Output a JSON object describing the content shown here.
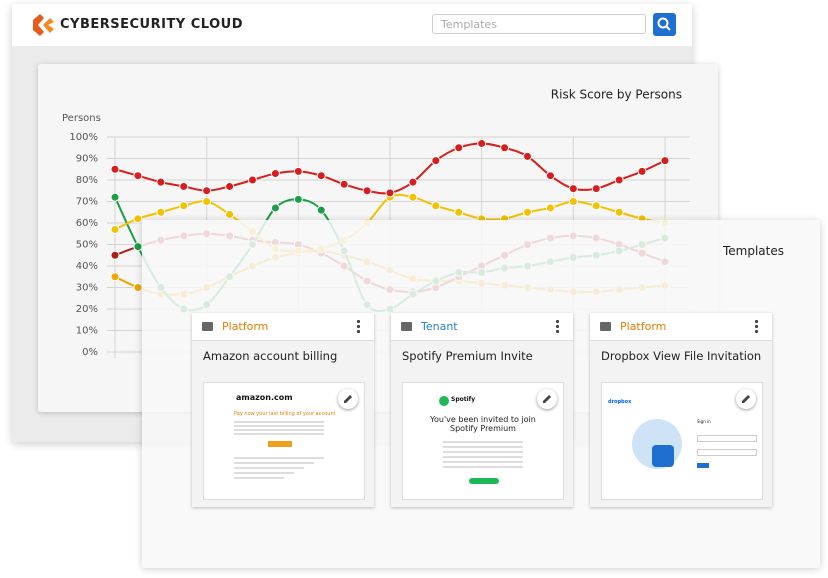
{
  "header": {
    "logo": "CYBERSECURITY CLOUD",
    "search_placeholder": "Templates"
  },
  "chart_data": {
    "type": "line",
    "title": "Risk Score by Persons",
    "y_label": "Persons",
    "ylim": [
      0,
      100
    ],
    "yticks": [
      {
        "value": 0,
        "label": "0%"
      },
      {
        "value": 10,
        "label": "10%"
      },
      {
        "value": 20,
        "label": "20%"
      },
      {
        "value": 30,
        "label": "30%"
      },
      {
        "value": 40,
        "label": "40%"
      },
      {
        "value": 50,
        "label": "50%"
      },
      {
        "value": 60,
        "label": "60%"
      },
      {
        "value": 70,
        "label": "70%"
      },
      {
        "value": 80,
        "label": "80%"
      },
      {
        "value": 90,
        "label": "90%"
      },
      {
        "value": 100,
        "label": "100%"
      }
    ],
    "grid": true,
    "series": [
      {
        "color": "#f0a500",
        "values": [
          35,
          30,
          27,
          27,
          30,
          35,
          40,
          44,
          46,
          47,
          45,
          42,
          38,
          34,
          33,
          33,
          32,
          31,
          30,
          29,
          28,
          28,
          29,
          30,
          31
        ]
      },
      {
        "color": "#b31b1b",
        "values": [
          45,
          49,
          52,
          54,
          55,
          54,
          52,
          51,
          50,
          46,
          40,
          33,
          29,
          28,
          30,
          35,
          40,
          45,
          50,
          53,
          54,
          53,
          50,
          46,
          42
        ]
      },
      {
        "color": "#1a9e48",
        "values": [
          72,
          49,
          30,
          20,
          22,
          35,
          50,
          67,
          71,
          66,
          47,
          22,
          20,
          27,
          33,
          37,
          37,
          39,
          40,
          42,
          44,
          45,
          47,
          50,
          53
        ]
      },
      {
        "color": "#f2c200",
        "values": [
          57,
          62,
          65,
          68,
          70,
          64,
          56,
          48,
          47,
          48,
          52,
          60,
          72,
          72,
          68,
          65,
          62,
          62,
          65,
          67,
          70,
          68,
          65,
          62,
          60
        ]
      },
      {
        "color": "#d91c1c",
        "values": [
          85,
          82,
          79,
          77,
          75,
          77,
          80,
          83,
          84,
          82,
          78,
          75,
          74,
          79,
          89,
          95,
          97,
          95,
          91,
          82,
          76,
          76,
          80,
          84,
          89
        ]
      }
    ]
  },
  "templates": {
    "title": "Templates",
    "cards": [
      {
        "tag": "Platform",
        "tag_color": "#e67e00",
        "name": "Amazon account billing",
        "preview": {
          "brand": "amazon.com",
          "headline": "Pay now your last billing of your account"
        }
      },
      {
        "tag": "Tenant",
        "tag_color": "#2a7fc9",
        "name": "Spotify Premium Invite",
        "preview": {
          "brand": "Spotify",
          "headline": "You've been invited to join Spotify Premium"
        }
      },
      {
        "tag": "Platform",
        "tag_color": "#e67e00",
        "name": "Dropbox View File Invitation",
        "preview": {
          "brand": "dropbox",
          "headline": "Sign in"
        }
      }
    ]
  }
}
